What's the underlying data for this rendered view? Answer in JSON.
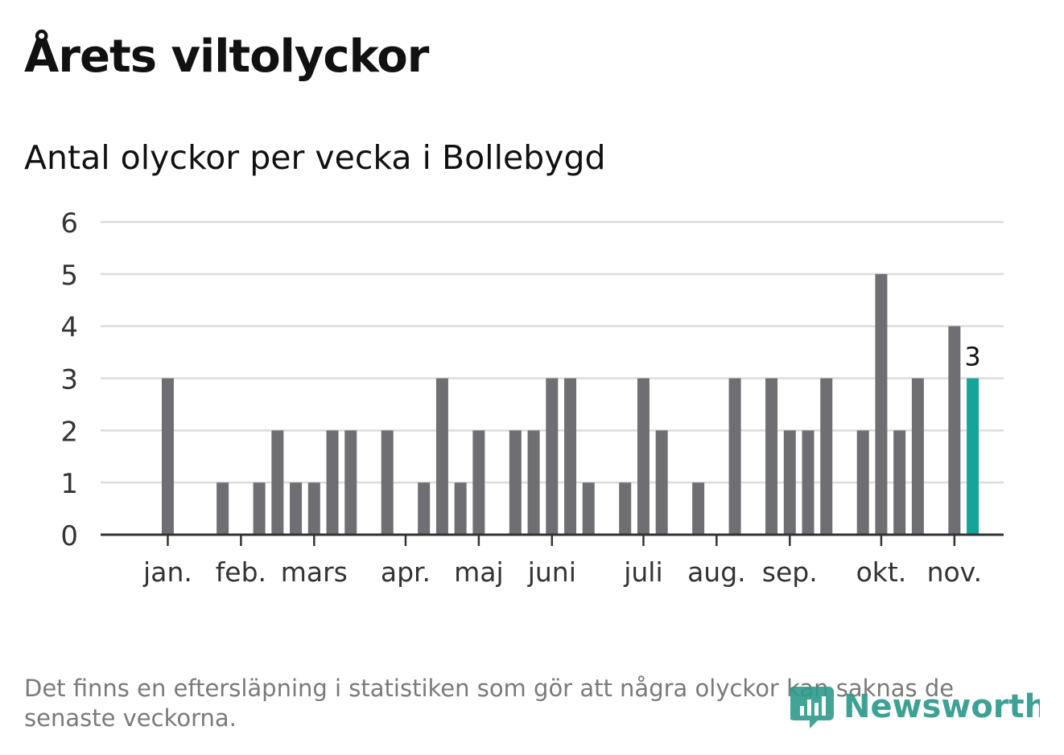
{
  "header": {
    "title": "Årets viltolyckor",
    "subtitle": "Antal olyckor per vecka i Bollebygd"
  },
  "footer": {
    "note": "Det finns en eftersläpning i statistiken som gör att några olyckor kan saknas de senaste veckorna.",
    "logo_text": "Newsworthy"
  },
  "colors": {
    "bar": "#6f6e73",
    "highlight": "#14a598",
    "grid": "#dcdcdc",
    "axis": "#333333",
    "text": "#333333",
    "logo": "#2d9a8b"
  },
  "chart_data": {
    "type": "bar",
    "title": "Antal olyckor per vecka i Bollebygd",
    "xlabel": "",
    "ylabel": "",
    "ylim": [
      0,
      6
    ],
    "yticks": [
      0,
      1,
      2,
      3,
      4,
      5,
      6
    ],
    "grid": true,
    "weeks": [
      1,
      2,
      3,
      4,
      5,
      6,
      7,
      8,
      9,
      10,
      11,
      12,
      13,
      14,
      15,
      16,
      17,
      18,
      19,
      20,
      21,
      22,
      23,
      24,
      25,
      26,
      27,
      28,
      29,
      30,
      31,
      32,
      33,
      34,
      35,
      36,
      37,
      38,
      39,
      40,
      41,
      42,
      43,
      44,
      45,
      46,
      47
    ],
    "values": [
      0,
      0,
      3,
      0,
      0,
      1,
      0,
      1,
      2,
      1,
      1,
      2,
      2,
      0,
      2,
      0,
      1,
      3,
      1,
      2,
      0,
      2,
      2,
      3,
      3,
      1,
      0,
      1,
      3,
      2,
      0,
      1,
      0,
      3,
      0,
      3,
      2,
      2,
      3,
      0,
      2,
      5,
      2,
      3,
      0,
      4,
      3
    ],
    "highlight_index": 46,
    "highlight_label": "3",
    "months": [
      {
        "label": "jan.",
        "week": 3
      },
      {
        "label": "feb.",
        "week": 7
      },
      {
        "label": "mars",
        "week": 11
      },
      {
        "label": "apr.",
        "week": 16
      },
      {
        "label": "maj",
        "week": 20
      },
      {
        "label": "juni",
        "week": 24
      },
      {
        "label": "juli",
        "week": 29
      },
      {
        "label": "aug.",
        "week": 33
      },
      {
        "label": "sep.",
        "week": 37
      },
      {
        "label": "okt.",
        "week": 42
      },
      {
        "label": "nov.",
        "week": 46
      }
    ]
  }
}
